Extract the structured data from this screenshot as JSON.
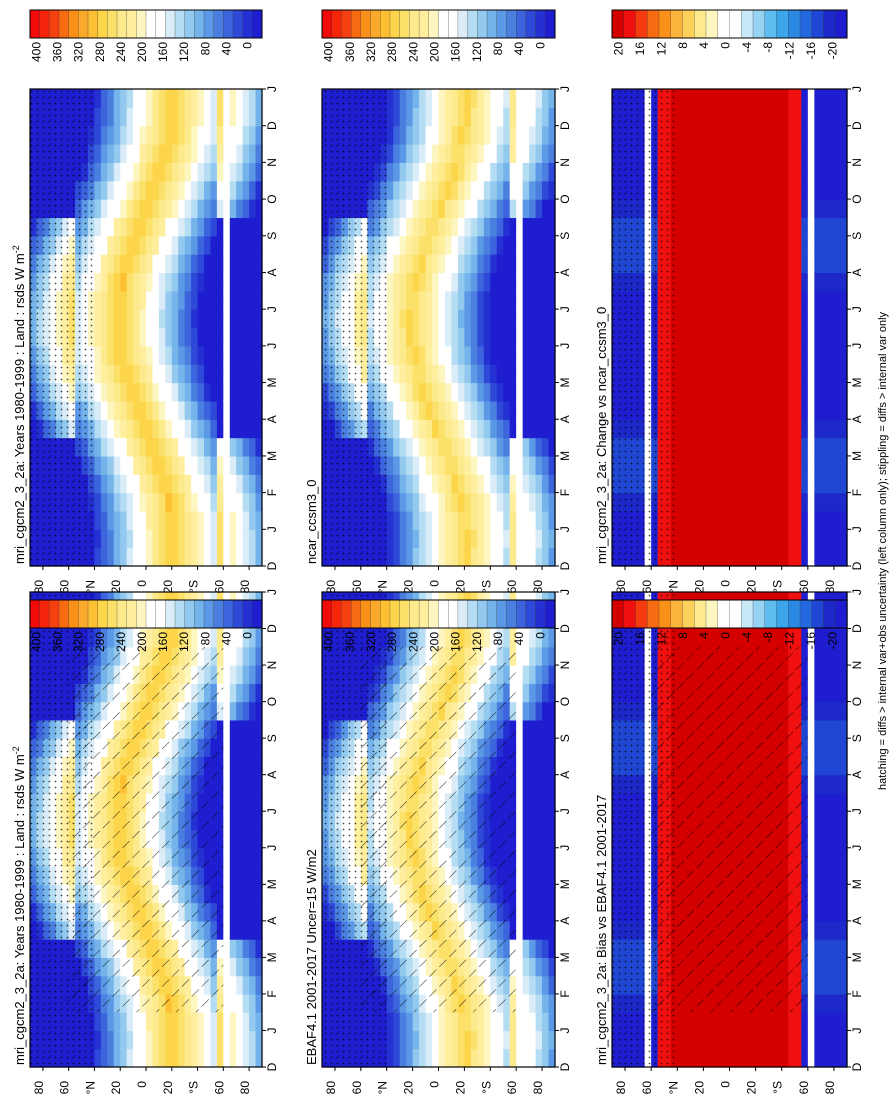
{
  "footnote": "hatching = diffs > internal var+obs uncertainty (left column only); stippling = diffs > internal var only",
  "colors": {
    "abs_scale": [
      "#f00a0a",
      "#f5250b",
      "#f5410f",
      "#f76b13",
      "#f9901a",
      "#f9a92b",
      "#fdc033",
      "#fcd54a",
      "#fbe169",
      "#fdea8c",
      "#feee9e",
      "#fef6c0",
      "#ffffff",
      "#ffffff",
      "#d9ecf7",
      "#b4ddf4",
      "#93c9ee",
      "#74b4eb",
      "#5b98e5",
      "#4a7fe0",
      "#3c64dc",
      "#2e48d7",
      "#2430d2",
      "#1e1ed0"
    ],
    "diff_scale": [
      "#d40000",
      "#f01010",
      "#f53a0f",
      "#f76b13",
      "#f9901a",
      "#fbb43c",
      "#fdd15a",
      "#fde98e",
      "#fef6c0",
      "#ffffff",
      "#ffffff",
      "#c8e8f7",
      "#96d2f2",
      "#5fbcef",
      "#3da6ea",
      "#2b88e3",
      "#2368dc",
      "#1f47d3",
      "#1c28c8",
      "#1e1ed0"
    ]
  },
  "chart_data": [
    {
      "type": "heatmap",
      "panel": "abs_left_top",
      "title": "mri_cgcm2_3_2a: Years 1980-1999 : Land : rsds W m",
      "title_superscript": "-2",
      "x": [
        "D",
        "J",
        "F",
        "M",
        "A",
        "M",
        "J",
        "J",
        "A",
        "S",
        "O",
        "N",
        "D",
        "J"
      ],
      "y_ticks": [
        "80",
        "60",
        "°N",
        "20",
        "0",
        "20",
        "°S",
        "60",
        "80"
      ],
      "ylim": [
        -90,
        90
      ],
      "colorbar_labels": [
        "400",
        "360",
        "320",
        "280",
        "240",
        "200",
        "160",
        "120",
        "80",
        "40",
        "0"
      ],
      "zlim": [
        0,
        420
      ],
      "hatching": true,
      "stippling": true
    },
    {
      "type": "heatmap",
      "panel": "abs_left_mid",
      "title": "EBAF4.1 2001-2017 Uncer=15 W/m2",
      "x": [
        "D",
        "J",
        "F",
        "M",
        "A",
        "M",
        "J",
        "J",
        "A",
        "S",
        "O",
        "N",
        "D",
        "J"
      ],
      "y_ticks": [
        "80",
        "60",
        "°N",
        "20",
        "0",
        "20",
        "°S",
        "60",
        "80"
      ],
      "ylim": [
        -90,
        90
      ],
      "colorbar_labels": [
        "400",
        "360",
        "320",
        "280",
        "240",
        "200",
        "160",
        "120",
        "80",
        "40",
        "0"
      ],
      "zlim": [
        0,
        420
      ],
      "hatching": true,
      "stippling": true
    },
    {
      "type": "heatmap",
      "panel": "diff_left_bottom",
      "title": "mri_cgcm2_3_2a: Bias vs EBAF4.1 2001-2017",
      "x": [
        "D",
        "J",
        "F",
        "M",
        "A",
        "M",
        "J",
        "J",
        "A",
        "S",
        "O",
        "N",
        "D",
        "J"
      ],
      "y_ticks": [
        "80",
        "60",
        "°N",
        "20",
        "0",
        "20",
        "°S",
        "60",
        "80"
      ],
      "ylim": [
        -90,
        90
      ],
      "colorbar_labels": [
        "20",
        "16",
        "12",
        "8",
        "4",
        "0",
        "-4",
        "-8",
        "-12",
        "-16",
        "-20"
      ],
      "zlim": [
        -22,
        22
      ],
      "hatching": true,
      "stippling": true
    },
    {
      "type": "heatmap",
      "panel": "abs_right_top",
      "title": "mri_cgcm2_3_2a: Years 1980-1999 : Land : rsds W m",
      "title_superscript": "-2",
      "x": [
        "D",
        "J",
        "F",
        "M",
        "A",
        "M",
        "J",
        "J",
        "A",
        "S",
        "O",
        "N",
        "D",
        "J"
      ],
      "y_ticks": [
        "80",
        "60",
        "°N",
        "20",
        "0",
        "20",
        "°S",
        "60",
        "80"
      ],
      "ylim": [
        -90,
        90
      ],
      "colorbar_labels": [
        "400",
        "360",
        "320",
        "280",
        "240",
        "200",
        "160",
        "120",
        "80",
        "40",
        "0"
      ],
      "zlim": [
        0,
        420
      ],
      "hatching": false,
      "stippling": true
    },
    {
      "type": "heatmap",
      "panel": "abs_right_mid",
      "title": "ncar_ccsm3_0",
      "x": [
        "D",
        "J",
        "F",
        "M",
        "A",
        "M",
        "J",
        "J",
        "A",
        "S",
        "O",
        "N",
        "D",
        "J"
      ],
      "y_ticks": [
        "80",
        "60",
        "°N",
        "20",
        "0",
        "20",
        "°S",
        "60",
        "80"
      ],
      "ylim": [
        -90,
        90
      ],
      "colorbar_labels": [
        "400",
        "360",
        "320",
        "280",
        "240",
        "200",
        "160",
        "120",
        "80",
        "40",
        "0"
      ],
      "zlim": [
        0,
        420
      ],
      "hatching": false,
      "stippling": true
    },
    {
      "type": "heatmap",
      "panel": "diff_right_bottom",
      "title": "mri_cgcm2_3_2a: Change vs ncar_ccsm3_0",
      "x": [
        "D",
        "J",
        "F",
        "M",
        "A",
        "M",
        "J",
        "J",
        "A",
        "S",
        "O",
        "N",
        "D",
        "J"
      ],
      "y_ticks": [
        "80",
        "60",
        "°N",
        "20",
        "0",
        "20",
        "°S",
        "60",
        "80"
      ],
      "ylim": [
        -90,
        90
      ],
      "colorbar_labels": [
        "20",
        "16",
        "12",
        "8",
        "4",
        "0",
        "-4",
        "-8",
        "-12",
        "-16",
        "-20"
      ],
      "zlim": [
        -22,
        22
      ],
      "hatching": false,
      "stippling": true
    }
  ]
}
